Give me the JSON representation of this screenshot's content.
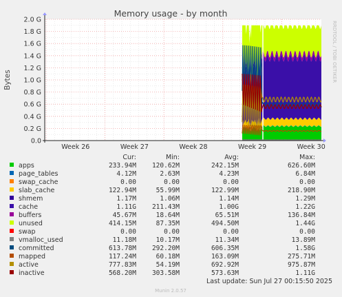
{
  "chart_data": {
    "type": "area",
    "title": "Memory usage - by month",
    "ylabel": "Bytes",
    "side_label": "RRDTOOL / TOBI OETIKER",
    "yticks": [
      "0.0",
      "0.2 G",
      "0.4 G",
      "0.6 G",
      "0.8 G",
      "1.0 G",
      "1.2 G",
      "1.4 G",
      "1.6 G",
      "1.8 G",
      "2.0 G"
    ],
    "ylim": [
      0,
      2.0
    ],
    "yunit": "G",
    "xticks": [
      "Week 26",
      "Week 27",
      "Week 28",
      "Week 29",
      "Week 30"
    ],
    "columns": [
      "Cur:",
      "Min:",
      "Avg:",
      "Max:"
    ],
    "series": [
      {
        "name": "apps",
        "color": "#00cc00",
        "cur": "233.94M",
        "min": "120.62M",
        "avg": "242.15M",
        "max": "626.60M"
      },
      {
        "name": "page_tables",
        "color": "#0066b3",
        "cur": "4.12M",
        "min": "2.63M",
        "avg": "4.23M",
        "max": "6.84M"
      },
      {
        "name": "swap_cache",
        "color": "#ff8000",
        "cur": "0.00",
        "min": "0.00",
        "avg": "0.00",
        "max": "0.00"
      },
      {
        "name": "slab_cache",
        "color": "#ffcc00",
        "cur": "122.94M",
        "min": "55.99M",
        "avg": "122.99M",
        "max": "218.90M"
      },
      {
        "name": "shmem",
        "color": "#330099",
        "cur": "1.17M",
        "min": "1.06M",
        "avg": "1.14M",
        "max": "1.29M"
      },
      {
        "name": "cache",
        "color": "#3a0fa8",
        "cur": "1.11G",
        "min": "211.43M",
        "avg": "1.00G",
        "max": "1.22G"
      },
      {
        "name": "buffers",
        "color": "#990099",
        "cur": "45.67M",
        "min": "18.64M",
        "avg": "65.51M",
        "max": "136.84M"
      },
      {
        "name": "unused",
        "color": "#ccff00",
        "cur": "414.15M",
        "min": "87.35M",
        "avg": "494.50M",
        "max": "1.44G"
      },
      {
        "name": "swap",
        "color": "#ff0000",
        "cur": "0.00",
        "min": "0.00",
        "avg": "0.00",
        "max": "0.00"
      },
      {
        "name": "vmalloc_used",
        "color": "#808080",
        "cur": "11.18M",
        "min": "10.17M",
        "avg": "11.34M",
        "max": "13.89M"
      },
      {
        "name": "committed",
        "color": "#004c80",
        "cur": "613.78M",
        "min": "292.20M",
        "avg": "606.35M",
        "max": "1.58G"
      },
      {
        "name": "mapped",
        "color": "#b34d00",
        "cur": "117.24M",
        "min": "60.18M",
        "avg": "163.09M",
        "max": "275.71M"
      },
      {
        "name": "active",
        "color": "#b38f00",
        "cur": "777.83M",
        "min": "54.19M",
        "avg": "692.92M",
        "max": "975.87M"
      },
      {
        "name": "inactive",
        "color": "#990000",
        "cur": "568.20M",
        "min": "303.58M",
        "avg": "573.63M",
        "max": "1.11G"
      }
    ],
    "last_update": "Last update: Sun Jul 27 00:15:50 2025",
    "footer": "Munin 2.0.57"
  }
}
